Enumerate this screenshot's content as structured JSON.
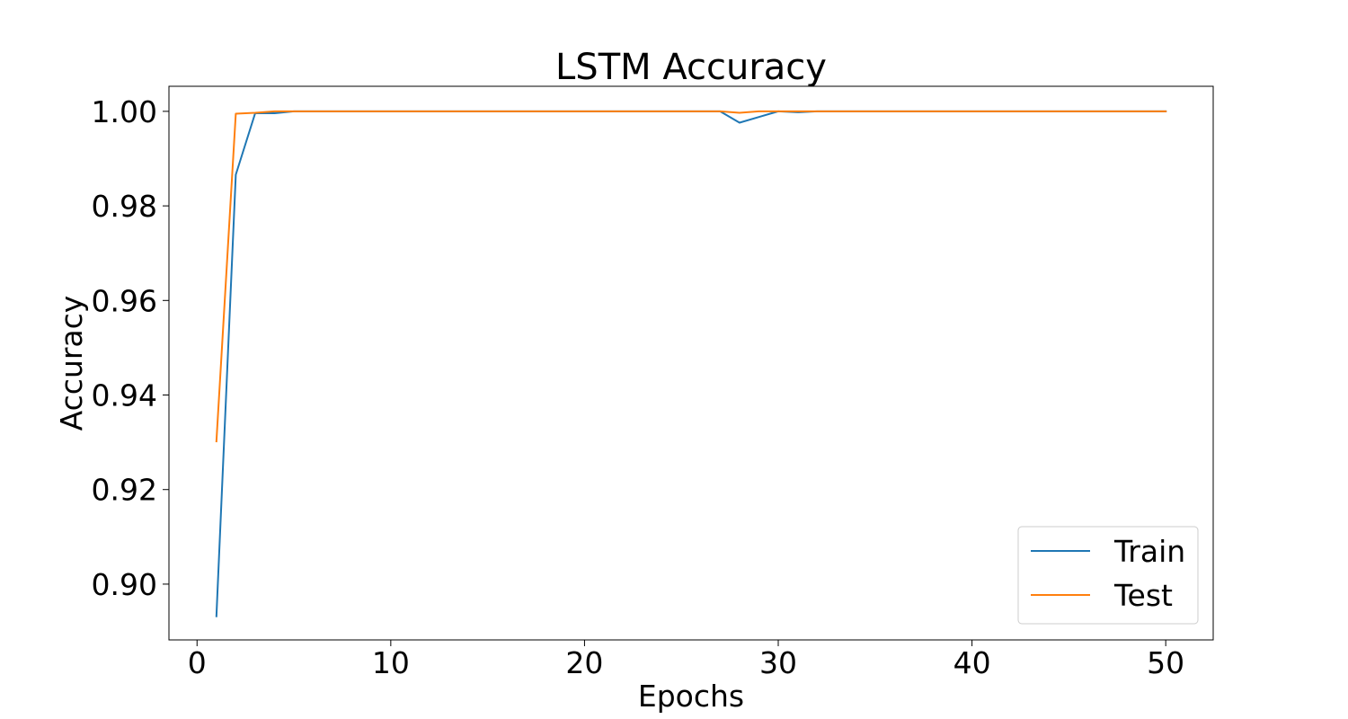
{
  "chart_data": {
    "type": "line",
    "title": "LSTM Accuracy",
    "xlabel": "Epochs",
    "ylabel": "Accuracy",
    "xlim": [
      -1.45,
      52.45
    ],
    "ylim": [
      0.8882,
      1.0053
    ],
    "xticks": [
      0,
      10,
      20,
      30,
      40,
      50
    ],
    "yticks": [
      0.9,
      0.92,
      0.94,
      0.96,
      0.98,
      1.0
    ],
    "ytick_labels": [
      "0.90",
      "0.92",
      "0.94",
      "0.96",
      "0.98",
      "1.00"
    ],
    "grid": false,
    "legend": "lower-right",
    "x": [
      1,
      2,
      3,
      4,
      5,
      6,
      7,
      8,
      9,
      10,
      11,
      12,
      13,
      14,
      15,
      16,
      17,
      18,
      19,
      20,
      21,
      22,
      23,
      24,
      25,
      26,
      27,
      28,
      29,
      30,
      31,
      32,
      33,
      34,
      35,
      36,
      37,
      38,
      39,
      40,
      41,
      42,
      43,
      44,
      45,
      46,
      47,
      48,
      49,
      50
    ],
    "series": [
      {
        "name": "Train",
        "color": "#1f77b4",
        "values": [
          0.8932,
          0.9866,
          0.9996,
          0.9996,
          1.0,
          1.0,
          1.0,
          1.0,
          1.0,
          1.0,
          1.0,
          1.0,
          1.0,
          1.0,
          1.0,
          1.0,
          1.0,
          1.0,
          1.0,
          1.0,
          1.0,
          1.0,
          1.0,
          1.0,
          1.0,
          1.0,
          1.0,
          0.9976,
          0.9988,
          1.0,
          0.9998,
          1.0,
          1.0,
          1.0,
          1.0,
          1.0,
          1.0,
          1.0,
          1.0,
          1.0,
          1.0,
          1.0,
          1.0,
          1.0,
          1.0,
          1.0,
          1.0,
          1.0,
          1.0,
          1.0
        ]
      },
      {
        "name": "Test",
        "color": "#ff7f0e",
        "values": [
          0.9302,
          0.9995,
          0.9997,
          1.0,
          1.0,
          1.0,
          1.0,
          1.0,
          1.0,
          1.0,
          1.0,
          1.0,
          1.0,
          1.0,
          1.0,
          1.0,
          1.0,
          1.0,
          1.0,
          1.0,
          1.0,
          1.0,
          1.0,
          1.0,
          1.0,
          1.0,
          1.0,
          0.9997,
          1.0,
          1.0,
          1.0,
          1.0,
          1.0,
          1.0,
          1.0,
          1.0,
          1.0,
          1.0,
          1.0,
          1.0,
          1.0,
          1.0,
          1.0,
          1.0,
          1.0,
          1.0,
          1.0,
          1.0,
          1.0,
          1.0
        ]
      }
    ]
  }
}
